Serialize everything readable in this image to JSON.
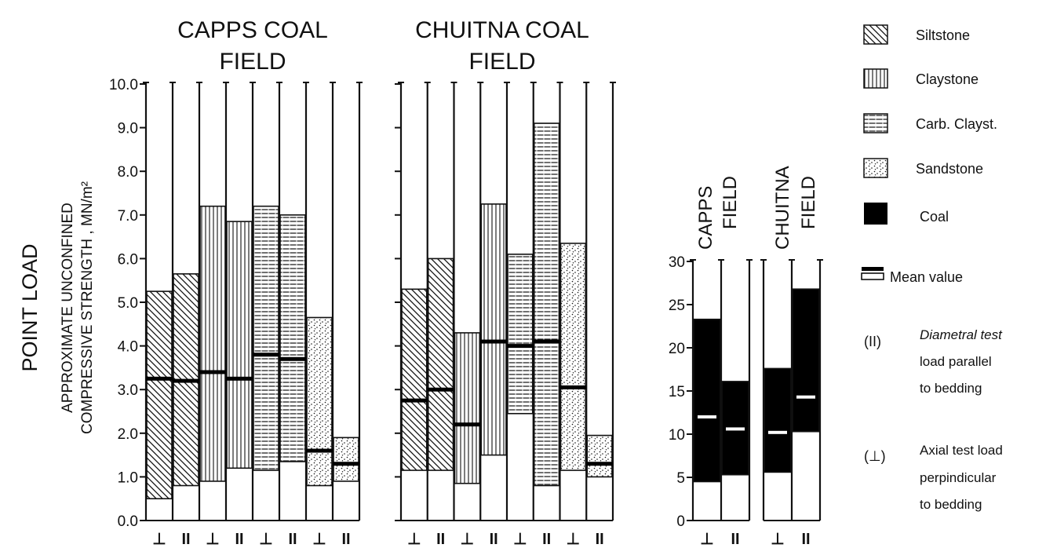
{
  "chart_data": [
    {
      "type": "bar",
      "subtype": "floating-range",
      "title": "CAPPS COAL FIELD",
      "ylabel_main": "POINT LOAD",
      "ylabel_sub": "APPROXIMATE UNCONFINED COMPRESSIVE STRENGTH , MN/m²",
      "ylim": [
        0,
        10
      ],
      "yticks": [
        "0.0",
        "1.0",
        "2.0",
        "3.0",
        "4.0",
        "5.0",
        "6.0",
        "7.0",
        "8.0",
        "9.0",
        "10.0"
      ],
      "bars": [
        {
          "material": "Siltstone",
          "test": "⊥",
          "min": 0.5,
          "max": 5.25,
          "mean": 3.25
        },
        {
          "material": "Siltstone",
          "test": "II",
          "min": 0.8,
          "max": 5.65,
          "mean": 3.2
        },
        {
          "material": "Claystone",
          "test": "⊥",
          "min": 0.9,
          "max": 7.2,
          "mean": 3.4
        },
        {
          "material": "Claystone",
          "test": "II",
          "min": 1.2,
          "max": 6.85,
          "mean": 3.25
        },
        {
          "material": "Carb. Clayst.",
          "test": "⊥",
          "min": 1.15,
          "max": 7.2,
          "mean": 3.8
        },
        {
          "material": "Carb. Clayst.",
          "test": "II",
          "min": 1.35,
          "max": 7.0,
          "mean": 3.7
        },
        {
          "material": "Sandstone",
          "test": "⊥",
          "min": 0.8,
          "max": 4.65,
          "mean": 1.6
        },
        {
          "material": "Sandstone",
          "test": "II",
          "min": 0.9,
          "max": 1.9,
          "mean": 1.3
        }
      ]
    },
    {
      "type": "bar",
      "subtype": "floating-range",
      "title": "CHUITNA COAL FIELD",
      "ylim": [
        0,
        10
      ],
      "bars": [
        {
          "material": "Siltstone",
          "test": "⊥",
          "min": 1.15,
          "max": 5.3,
          "mean": 2.75
        },
        {
          "material": "Siltstone",
          "test": "II",
          "min": 1.15,
          "max": 6.0,
          "mean": 3.0
        },
        {
          "material": "Claystone",
          "test": "⊥",
          "min": 0.85,
          "max": 4.3,
          "mean": 2.2
        },
        {
          "material": "Claystone",
          "test": "II",
          "min": 1.5,
          "max": 7.25,
          "mean": 4.1
        },
        {
          "material": "Carb. Clayst.",
          "test": "⊥",
          "min": 2.45,
          "max": 6.1,
          "mean": 4.0
        },
        {
          "material": "Carb. Clayst.",
          "test": "II",
          "min": 0.8,
          "max": 9.1,
          "mean": 4.1
        },
        {
          "material": "Sandstone",
          "test": "⊥",
          "min": 1.15,
          "max": 6.35,
          "mean": 3.05
        },
        {
          "material": "Sandstone",
          "test": "II",
          "min": 1.0,
          "max": 1.95,
          "mean": 1.3
        }
      ]
    },
    {
      "type": "bar",
      "subtype": "floating-range",
      "ylim": [
        0,
        30
      ],
      "yticks": [
        "0",
        "5",
        "10",
        "15",
        "20",
        "25",
        "30"
      ],
      "groups": [
        {
          "label": "CAPPS FIELD",
          "bars": [
            {
              "material": "Coal",
              "test": "⊥",
              "min": 4.5,
              "max": 23.3,
              "mean": 12.0
            },
            {
              "material": "Coal",
              "test": "II",
              "min": 5.3,
              "max": 16.1,
              "mean": 10.6
            }
          ]
        },
        {
          "label": "CHUITNA FIELD",
          "bars": [
            {
              "material": "Coal",
              "test": "⊥",
              "min": 5.6,
              "max": 17.6,
              "mean": 10.2
            },
            {
              "material": "Coal",
              "test": "II",
              "min": 10.3,
              "max": 26.8,
              "mean": 14.3
            }
          ]
        }
      ]
    }
  ],
  "titles": {
    "capps_line1": "CAPPS COAL",
    "capps_line2": "FIELD",
    "chuitna_line1": "CHUITNA COAL",
    "chuitna_line2": "FIELD",
    "coal_capps_line1": "CAPPS",
    "coal_capps_line2": "FIELD",
    "coal_chuitna_line1": "CHUITNA",
    "coal_chuitna_line2": "FIELD"
  },
  "axis": {
    "ylabel_main": "POINT LOAD",
    "ylabel_sub_line1": "APPROXIMATE UNCONFINED",
    "ylabel_sub_line2": "COMPRESSIVE STRENGTH , MN/m²"
  },
  "legend": {
    "siltstone": "Siltstone",
    "claystone": "Claystone",
    "carb": "Carb.  Clayst.",
    "sandstone": "Sandstone",
    "coal": "Coal",
    "mean": "Mean value",
    "diam_symbol": "(II)",
    "diam_line1": "Diametral test",
    "diam_line2": "load parallel",
    "diam_line3": "to bedding",
    "axial_symbol": "(⊥)",
    "axial_line1": "Axial test load",
    "axial_line2": "perpindicular",
    "axial_line3": "to bedding"
  }
}
